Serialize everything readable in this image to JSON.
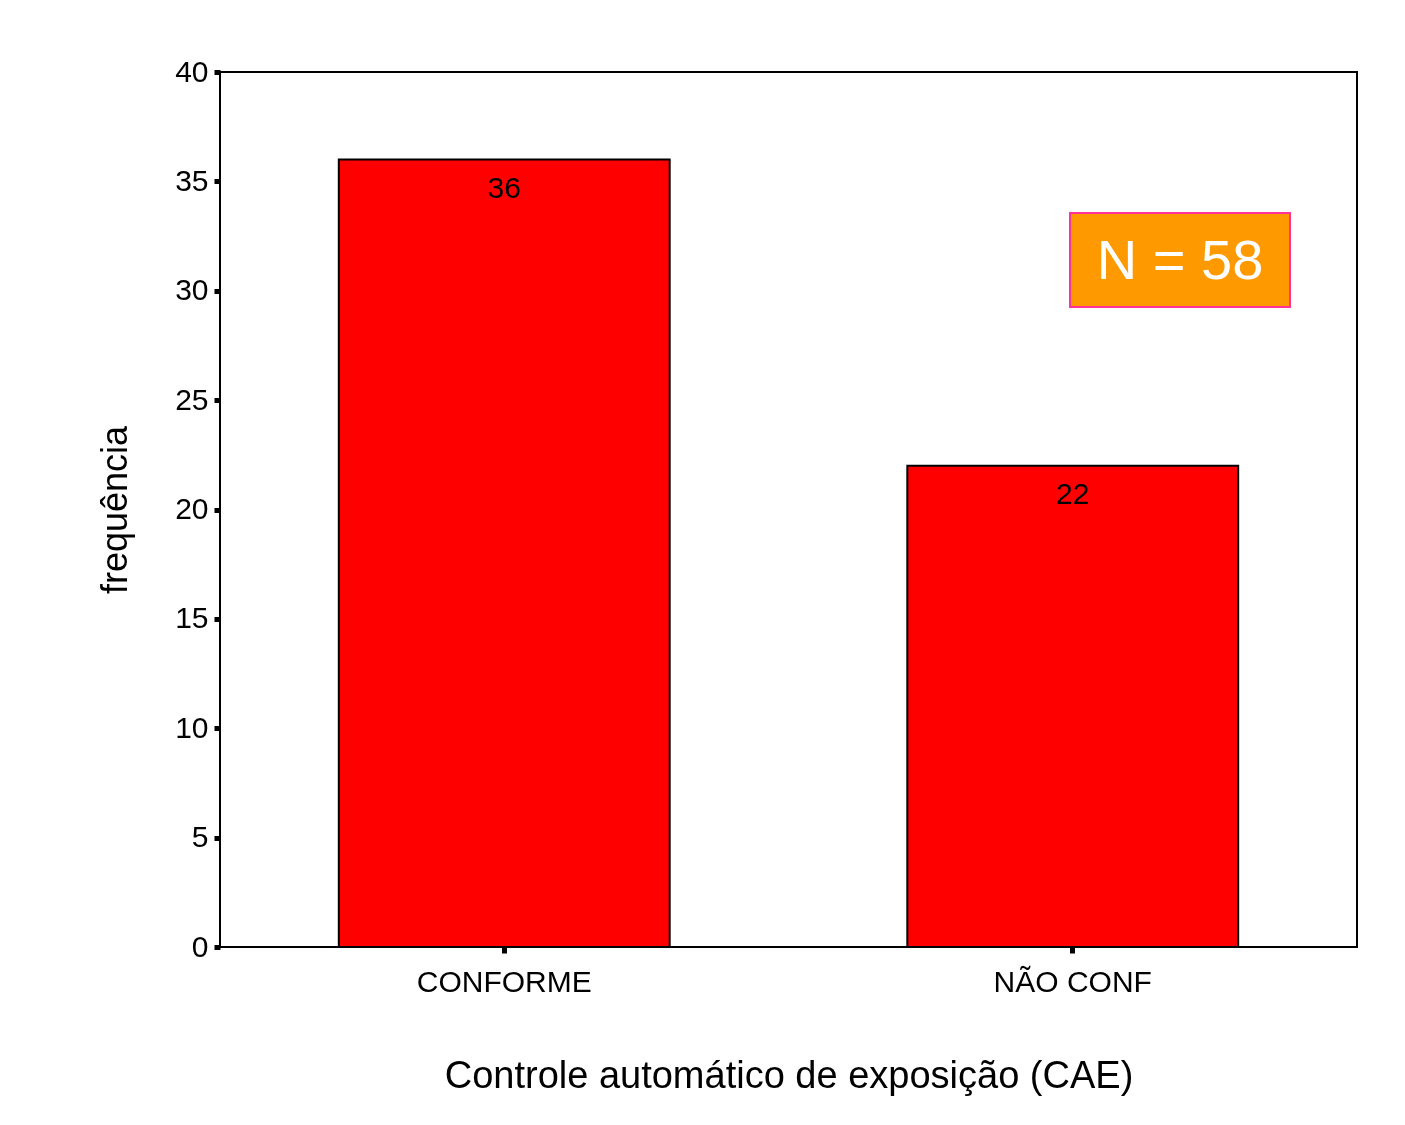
{
  "chart_data": {
    "type": "bar",
    "categories": [
      "CONFORME",
      "NÃO CONF"
    ],
    "values": [
      36,
      22
    ],
    "color": "#ff0000",
    "xlabel": "Controle automático de exposição (CAE)",
    "ylabel": "frequência",
    "ylim": [
      0,
      40
    ],
    "yticks": [
      0,
      5,
      10,
      15,
      20,
      25,
      30,
      35,
      40
    ],
    "grid": false,
    "data_labels": true,
    "annotations": [
      "N = 58"
    ]
  }
}
